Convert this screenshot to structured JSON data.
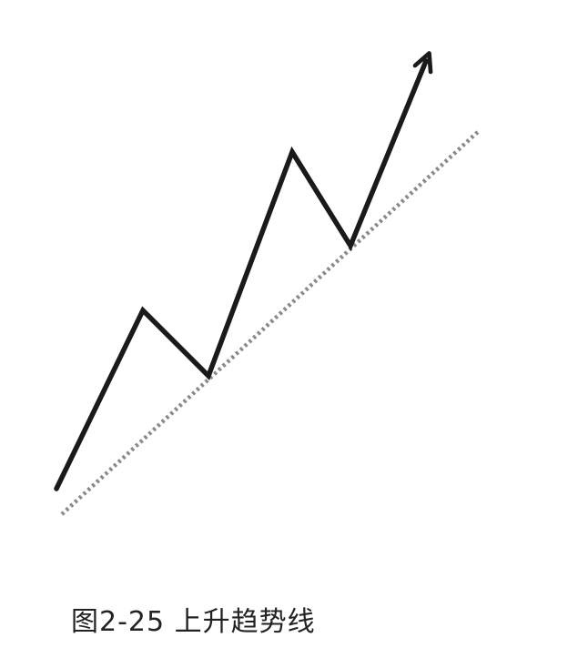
{
  "caption": "图2-25 上升趋势线",
  "colors": {
    "price_line": "#1a1a1a",
    "trend_line": "#8a8a8a",
    "background": "#ffffff"
  }
}
